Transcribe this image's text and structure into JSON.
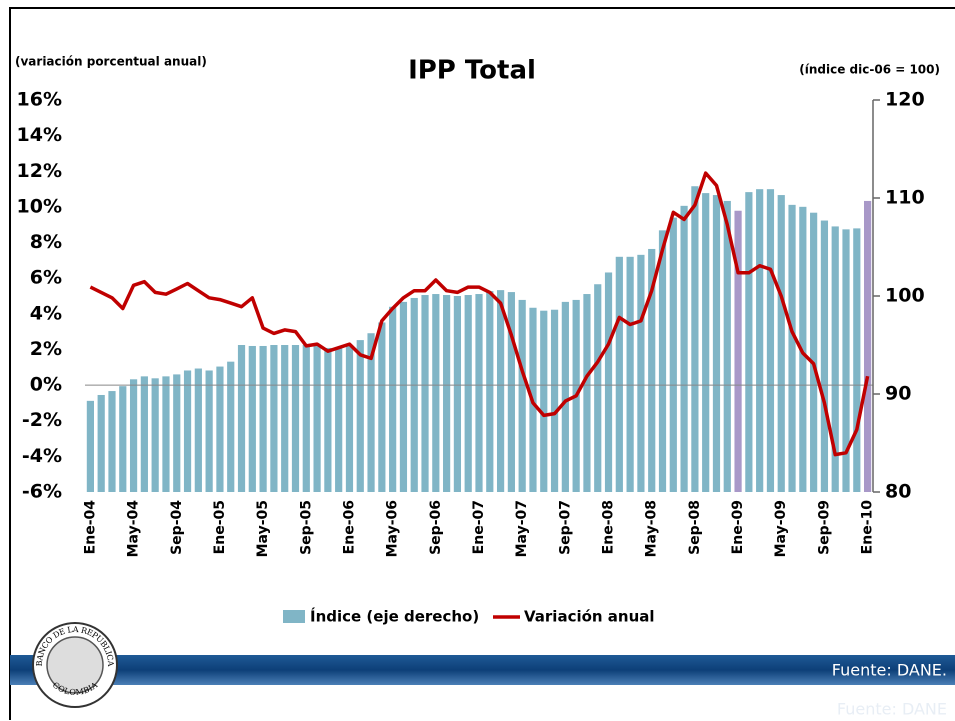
{
  "chart_data": {
    "type": "bar-line",
    "title": "IPP Total",
    "y_axis_label": "(variación porcentual anual)",
    "y2_axis_label": "(índice dic-06 = 100)",
    "source": "Fuente: DANE.",
    "source_echo": "Fuente: DANE",
    "logo_texts": [
      "BANCO DE LA REPUBLICA",
      "COLOMBIA"
    ],
    "categories": [
      "Ene-04",
      null,
      null,
      null,
      "May-04",
      null,
      null,
      null,
      "Sep-04",
      null,
      null,
      null,
      "Ene-05",
      null,
      null,
      null,
      "May-05",
      null,
      null,
      null,
      "Sep-05",
      null,
      null,
      null,
      "Ene-06",
      null,
      null,
      null,
      "May-06",
      null,
      null,
      null,
      "Sep-06",
      null,
      null,
      null,
      "Ene-07",
      null,
      null,
      null,
      "May-07",
      null,
      null,
      null,
      "Sep-07",
      null,
      null,
      null,
      "Ene-08",
      null,
      null,
      null,
      "May-08",
      null,
      null,
      null,
      "Sep-08",
      null,
      null,
      null,
      "Ene-09",
      null,
      null,
      null,
      "May-09",
      null,
      null,
      null,
      "Sep-09",
      null,
      null,
      null,
      "Ene-10"
    ],
    "series": [
      {
        "name": "Índice (eje derecho)",
        "type": "bar",
        "axis": "y2",
        "color": "#80b5c6",
        "colors": [
          "#80b5c6",
          "#80b5c6",
          "#80b5c6",
          "#80b5c6",
          "#80b5c6",
          "#80b5c6",
          "#80b5c6",
          "#80b5c6",
          "#80b5c6",
          "#80b5c6",
          "#80b5c6",
          "#80b5c6",
          "#80b5c6",
          "#80b5c6",
          "#80b5c6",
          "#80b5c6",
          "#80b5c6",
          "#80b5c6",
          "#80b5c6",
          "#80b5c6",
          "#80b5c6",
          "#80b5c6",
          "#80b5c6",
          "#80b5c6",
          "#80b5c6",
          "#80b5c6",
          "#80b5c6",
          "#80b5c6",
          "#80b5c6",
          "#80b5c6",
          "#80b5c6",
          "#80b5c6",
          "#80b5c6",
          "#80b5c6",
          "#80b5c6",
          "#80b5c6",
          "#80b5c6",
          "#80b5c6",
          "#80b5c6",
          "#80b5c6",
          "#80b5c6",
          "#80b5c6",
          "#80b5c6",
          "#80b5c6",
          "#80b5c6",
          "#80b5c6",
          "#80b5c6",
          "#80b5c6",
          "#80b5c6",
          "#80b5c6",
          "#80b5c6",
          "#80b5c6",
          "#80b5c6",
          "#80b5c6",
          "#80b5c6",
          "#80b5c6",
          "#80b5c6",
          "#80b5c6",
          "#80b5c6",
          "#80b5c6",
          "#a898c8",
          "#80b5c6",
          "#80b5c6",
          "#80b5c6",
          "#80b5c6",
          "#80b5c6",
          "#80b5c6",
          "#80b5c6",
          "#80b5c6",
          "#80b5c6",
          "#80b5c6",
          "#80b5c6",
          "#a898c8"
        ],
        "values": [
          89.3,
          89.9,
          90.3,
          90.8,
          91.5,
          91.8,
          91.6,
          91.8,
          92.0,
          92.4,
          92.6,
          92.4,
          92.8,
          93.3,
          95.0,
          94.9,
          94.9,
          95.0,
          95.0,
          95.0,
          95.0,
          94.9,
          94.7,
          94.8,
          95.0,
          95.5,
          96.2,
          97.3,
          98.9,
          99.4,
          99.8,
          100.1,
          100.2,
          100.1,
          100.0,
          100.1,
          100.2,
          100.5,
          100.6,
          100.4,
          99.6,
          98.8,
          98.5,
          98.6,
          99.4,
          99.6,
          100.2,
          101.2,
          102.4,
          104.0,
          104.0,
          104.2,
          104.8,
          106.7,
          108.0,
          109.2,
          111.2,
          110.5,
          110.3,
          109.7,
          108.7,
          110.6,
          110.9,
          110.9,
          110.3,
          109.3,
          109.1,
          108.5,
          107.7,
          107.1,
          106.8,
          106.9,
          109.7
        ]
      },
      {
        "name": "Variación anual",
        "type": "line",
        "axis": "y",
        "color": "#c00000",
        "values": [
          5.5,
          5.2,
          4.9,
          4.3,
          5.6,
          5.8,
          5.2,
          5.1,
          5.4,
          5.7,
          5.3,
          4.9,
          4.8,
          4.6,
          4.4,
          4.9,
          3.2,
          2.9,
          3.1,
          3.0,
          2.2,
          2.3,
          1.9,
          2.1,
          2.3,
          1.7,
          1.5,
          3.6,
          4.3,
          4.9,
          5.3,
          5.3,
          5.9,
          5.3,
          5.2,
          5.5,
          5.5,
          5.2,
          4.6,
          2.8,
          0.8,
          -1.0,
          -1.7,
          -1.6,
          -0.9,
          -0.6,
          0.5,
          1.3,
          2.3,
          3.8,
          3.4,
          3.6,
          5.3,
          7.6,
          9.7,
          9.3,
          10.1,
          11.9,
          11.2,
          9.0,
          6.3,
          6.3,
          6.7,
          6.5,
          5.0,
          3.0,
          1.8,
          1.2,
          -1.0,
          -3.9,
          -3.8,
          -2.5,
          0.5
        ]
      }
    ],
    "ylim": [
      -6,
      16
    ],
    "yticks": [
      {
        "value": -6,
        "label": "-6%"
      },
      {
        "value": -4,
        "label": "-4%"
      },
      {
        "value": -2,
        "label": "-2%"
      },
      {
        "value": 0,
        "label": "0%"
      },
      {
        "value": 2,
        "label": "2%"
      },
      {
        "value": 4,
        "label": "4%"
      },
      {
        "value": 6,
        "label": "6%"
      },
      {
        "value": 8,
        "label": "8%"
      },
      {
        "value": 10,
        "label": "10%"
      },
      {
        "value": 12,
        "label": "12%"
      },
      {
        "value": 14,
        "label": "14%"
      },
      {
        "value": 16,
        "label": "16%"
      }
    ],
    "y2lim": [
      80,
      120
    ],
    "y2ticks": [
      80,
      90,
      100,
      110,
      120
    ],
    "legend": "bottom"
  }
}
